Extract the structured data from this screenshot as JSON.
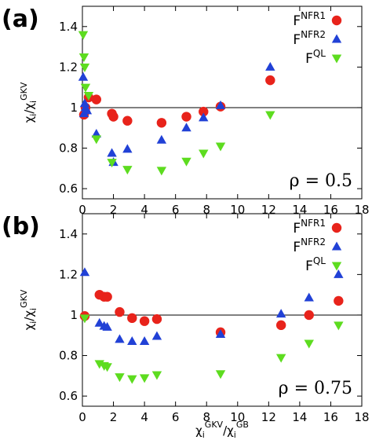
{
  "figure": {
    "xlabel": {
      "main": "χ",
      "sub": "i",
      "sup": "GKV",
      "slash": "/χ",
      "sub2": "i",
      "sup2": "GB"
    }
  },
  "chart_data": [
    {
      "type": "scatter",
      "panel_label": "(a)",
      "annotation": "ρ = 0.5",
      "ylabel": {
        "main": "χ",
        "sub": "i",
        "slash": "/χ",
        "sub2": "i",
        "sup2": "GKV"
      },
      "xlim": [
        0,
        18
      ],
      "ylim": [
        0.55,
        1.5
      ],
      "x_ticks": [
        "0",
        "2",
        "4",
        "6",
        "8",
        "10",
        "12",
        "14",
        "16",
        "18"
      ],
      "x_tick_values": [
        0,
        2,
        4,
        6,
        8,
        10,
        12,
        14,
        16,
        18
      ],
      "y_ticks": [
        "0.6",
        "0.8",
        "1",
        "1.2",
        "1.4"
      ],
      "y_tick_values": [
        0.6,
        0.8,
        1.0,
        1.2,
        1.4
      ],
      "reference_line": 1.0,
      "legend_position": "top-right",
      "series": [
        {
          "name": "NFR1",
          "name_prefix": "F",
          "marker": "circle",
          "color": "#e8231b",
          "x": [
            0.1,
            0.2,
            0.4,
            0.9,
            1.9,
            2.0,
            2.9,
            5.1,
            6.7,
            7.8,
            8.9,
            12.1
          ],
          "y": [
            0.965,
            1.0,
            1.05,
            1.04,
            0.97,
            0.955,
            0.935,
            0.925,
            0.955,
            0.98,
            1.005,
            1.135
          ]
        },
        {
          "name": "NFR2",
          "name_prefix": "F",
          "marker": "triangle-up",
          "color": "#2141d6",
          "x": [
            0.05,
            0.1,
            0.15,
            0.2,
            0.3,
            0.9,
            1.9,
            2.0,
            2.9,
            5.1,
            6.7,
            7.8,
            8.9,
            12.1
          ],
          "y": [
            1.15,
            0.97,
            1.02,
            1.0,
            0.985,
            0.87,
            0.775,
            0.73,
            0.795,
            0.84,
            0.9,
            0.95,
            1.01,
            1.2
          ]
        },
        {
          "name": "QL",
          "name_prefix": "F",
          "marker": "triangle-down",
          "color": "#5ddc1f",
          "x": [
            0.05,
            0.1,
            0.15,
            0.2,
            0.4,
            0.9,
            1.9,
            2.9,
            5.1,
            6.7,
            7.8,
            8.9,
            12.1
          ],
          "y": [
            1.36,
            1.25,
            1.2,
            1.1,
            1.06,
            0.845,
            0.73,
            0.695,
            0.69,
            0.735,
            0.775,
            0.81,
            0.965
          ]
        }
      ]
    },
    {
      "type": "scatter",
      "panel_label": "(b)",
      "annotation": "ρ = 0.75",
      "ylabel": {
        "main": "χ",
        "sub": "i",
        "slash": "/χ",
        "sub2": "i",
        "sup2": "GKV"
      },
      "xlim": [
        0,
        18
      ],
      "ylim": [
        0.55,
        1.5
      ],
      "x_ticks": [
        "0",
        "2",
        "4",
        "6",
        "8",
        "10",
        "12",
        "14",
        "16",
        "18"
      ],
      "x_tick_values": [
        0,
        2,
        4,
        6,
        8,
        10,
        12,
        14,
        16,
        18
      ],
      "y_ticks": [
        "0.6",
        "0.8",
        "1",
        "1.2",
        "1.4"
      ],
      "y_tick_values": [
        0.6,
        0.8,
        1.0,
        1.2,
        1.4
      ],
      "reference_line": 1.0,
      "legend_position": "top-right",
      "series": [
        {
          "name": "NFR1",
          "name_prefix": "F",
          "marker": "circle",
          "color": "#e8231b",
          "x": [
            0.15,
            1.1,
            1.4,
            1.6,
            2.4,
            3.2,
            4.0,
            4.8,
            8.9,
            12.8,
            14.6,
            16.5
          ],
          "y": [
            0.995,
            1.1,
            1.09,
            1.09,
            1.015,
            0.985,
            0.97,
            0.98,
            0.915,
            0.95,
            1.0,
            1.07
          ]
        },
        {
          "name": "NFR2",
          "name_prefix": "F",
          "marker": "triangle-up",
          "color": "#2141d6",
          "x": [
            0.15,
            1.1,
            1.4,
            1.6,
            2.4,
            3.2,
            4.0,
            4.8,
            8.9,
            12.8,
            14.6,
            16.5
          ],
          "y": [
            1.21,
            0.96,
            0.945,
            0.94,
            0.88,
            0.87,
            0.87,
            0.895,
            0.905,
            1.005,
            1.085,
            1.2
          ]
        },
        {
          "name": "QL",
          "name_prefix": "F",
          "marker": "triangle-down",
          "color": "#5ddc1f",
          "x": [
            0.15,
            1.1,
            1.4,
            1.6,
            2.4,
            3.2,
            4.0,
            4.8,
            8.9,
            12.8,
            14.6,
            16.5
          ],
          "y": [
            0.985,
            0.76,
            0.75,
            0.745,
            0.695,
            0.685,
            0.69,
            0.705,
            0.71,
            0.79,
            0.86,
            0.95
          ]
        }
      ]
    }
  ]
}
